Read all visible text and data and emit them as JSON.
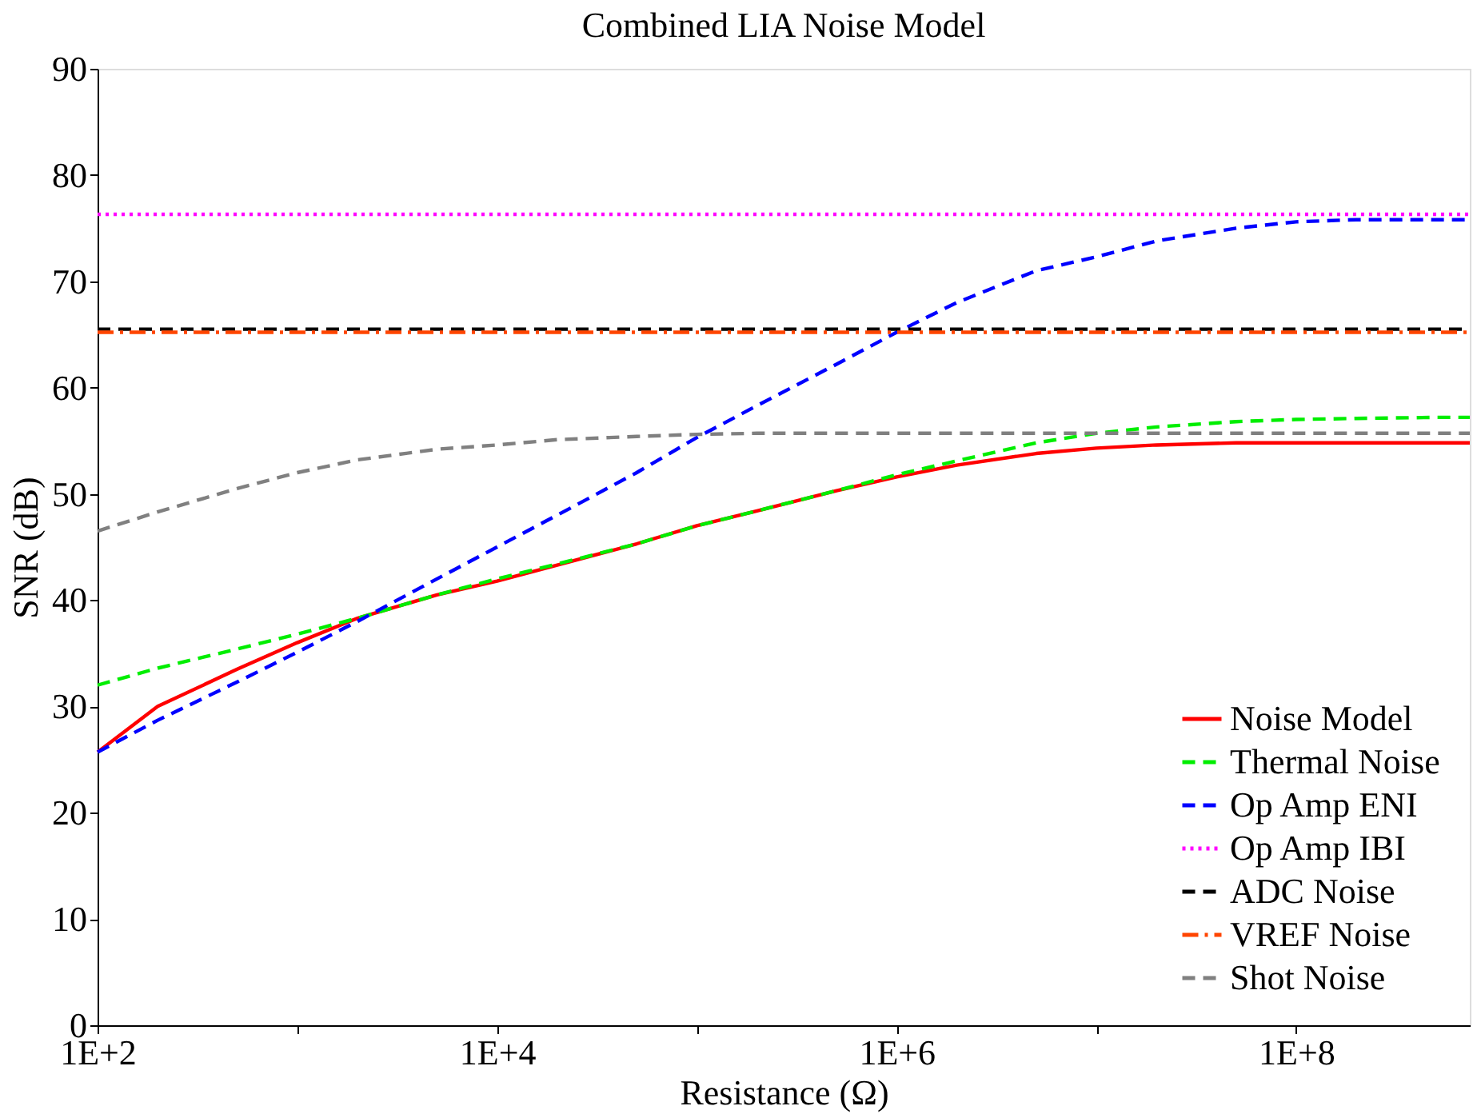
{
  "chart_data": {
    "type": "line",
    "title": "Combined LIA Noise Model",
    "xlabel": "Resistance (Ω)",
    "ylabel": "SNR (dB)",
    "log": "x",
    "grid": false,
    "legend": "bottom right",
    "x": [
      100,
      200,
      500,
      1000,
      2000,
      5000,
      10000,
      20000,
      50000,
      100000,
      200000,
      500000,
      1000000,
      2000000,
      5000000,
      10000000,
      20000000,
      50000000,
      100000000,
      200000000,
      500000000,
      740000000
    ],
    "xlim": [
      100,
      740000000
    ],
    "xticks": [
      {
        "value": 100,
        "label": "1E+2"
      },
      {
        "value": 1000,
        "label": null
      },
      {
        "value": 10000,
        "label": "1E+4"
      },
      {
        "value": 100000,
        "label": null
      },
      {
        "value": 1000000,
        "label": "1E+6"
      },
      {
        "value": 10000000,
        "label": null
      },
      {
        "value": 100000000,
        "label": "1E+8"
      }
    ],
    "ylim": [
      0,
      90
    ],
    "yticks": [
      0,
      10,
      20,
      30,
      40,
      50,
      60,
      70,
      80,
      90
    ],
    "series": [
      {
        "name": "Noise Model",
        "color": "#ff0000",
        "line_style": "solid",
        "values": [
          25.7,
          30,
          33.5,
          36,
          38.3,
          40.5,
          41.8,
          43.3,
          45.3,
          47,
          48.4,
          50.3,
          51.6,
          52.7,
          53.8,
          54.3,
          54.6,
          54.8,
          54.8,
          54.8,
          54.8,
          54.8
        ]
      },
      {
        "name": "Thermal Noise",
        "color": "#00ee00",
        "line_style": "dashed",
        "values": [
          32,
          33.6,
          35.4,
          36.8,
          38.3,
          40.5,
          42,
          43.4,
          45.3,
          47,
          48.4,
          50.3,
          51.8,
          53.1,
          54.8,
          55.7,
          56.3,
          56.8,
          57,
          57.1,
          57.2,
          57.2
        ]
      },
      {
        "name": "Op Amp ENI",
        "color": "#0000ff",
        "line_style": "dashed",
        "values": [
          25.7,
          28.7,
          32.3,
          35.1,
          38,
          42,
          45,
          48,
          52,
          55.3,
          58.3,
          62.2,
          65.2,
          68,
          71,
          72.3,
          73.8,
          75,
          75.6,
          75.8,
          75.8,
          75.8
        ]
      },
      {
        "name": "Op Amp IBI",
        "color": "#ff00ff",
        "line_style": "dotted",
        "values": [
          76.3,
          76.3,
          76.3,
          76.3,
          76.3,
          76.3,
          76.3,
          76.3,
          76.3,
          76.3,
          76.3,
          76.3,
          76.3,
          76.3,
          76.3,
          76.3,
          76.3,
          76.3,
          76.3,
          76.3,
          76.3,
          76.3
        ]
      },
      {
        "name": "ADC Noise",
        "color": "#000000",
        "line_style": "dashed",
        "values": [
          65.5,
          65.5,
          65.5,
          65.5,
          65.5,
          65.5,
          65.5,
          65.5,
          65.5,
          65.5,
          65.5,
          65.5,
          65.5,
          65.5,
          65.5,
          65.5,
          65.5,
          65.5,
          65.5,
          65.5,
          65.5,
          65.5
        ]
      },
      {
        "name": "VREF Noise",
        "color": "#ff4500",
        "line_style": "dashdot",
        "values": [
          65.2,
          65.2,
          65.2,
          65.2,
          65.2,
          65.2,
          65.2,
          65.2,
          65.2,
          65.2,
          65.2,
          65.2,
          65.2,
          65.2,
          65.2,
          65.2,
          65.2,
          65.2,
          65.2,
          65.2,
          65.2,
          65.2
        ]
      },
      {
        "name": "Shot Noise",
        "color": "#808080",
        "line_style": "dashed",
        "values": [
          46.5,
          48.3,
          50.5,
          52,
          53.2,
          54.2,
          54.6,
          55.1,
          55.4,
          55.6,
          55.7,
          55.7,
          55.7,
          55.7,
          55.7,
          55.7,
          55.7,
          55.7,
          55.7,
          55.7,
          55.7,
          55.7
        ]
      }
    ]
  }
}
